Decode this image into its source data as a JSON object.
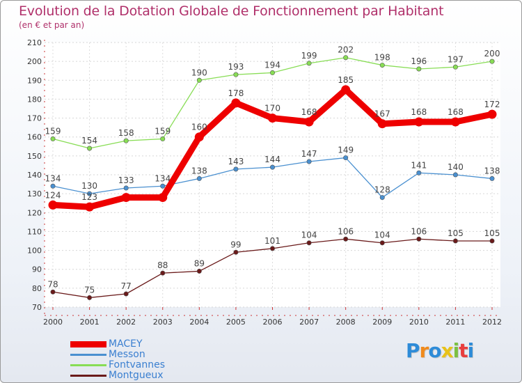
{
  "title": "Evolution de la Dotation Globale de Fonctionnement par Habitant",
  "subtitle": "(en € et par an)",
  "chart_data": {
    "type": "line",
    "title": "Evolution de la Dotation Globale de Fonctionnement par Habitant",
    "ylabel": "(en € et par an)",
    "xlabel": "",
    "x": [
      "2000",
      "2001",
      "2002",
      "2003",
      "2004",
      "2005",
      "2006",
      "2007",
      "2008",
      "2009",
      "2010",
      "2011",
      "2012"
    ],
    "ylim": [
      70,
      210
    ],
    "yticks": [
      70,
      80,
      90,
      100,
      110,
      120,
      130,
      140,
      150,
      160,
      170,
      180,
      190,
      200,
      210
    ],
    "grid": true,
    "legend_position": "bottom-left",
    "series": [
      {
        "name": "MACEY",
        "color": "#ee0000",
        "values": [
          124,
          123,
          128,
          128,
          160,
          178,
          170,
          168,
          185,
          167,
          168,
          168,
          172
        ],
        "labels": [
          "124",
          "123",
          "",
          "",
          "160",
          "178",
          "170",
          "168",
          "185",
          "167",
          "168",
          "168",
          "172"
        ]
      },
      {
        "name": "Messon",
        "color": "#4a90d0",
        "values": [
          134,
          130,
          133,
          134,
          138,
          143,
          144,
          147,
          149,
          128,
          141,
          140,
          138
        ],
        "labels": [
          "134",
          "130",
          "133",
          "134",
          "138",
          "143",
          "144",
          "147",
          "149",
          "128",
          "141",
          "140",
          "138"
        ]
      },
      {
        "name": "Fontvannes",
        "color": "#88dd55",
        "values": [
          159,
          154,
          158,
          159,
          190,
          193,
          194,
          199,
          202,
          198,
          196,
          197,
          200
        ],
        "labels": [
          "159",
          "154",
          "158",
          "159",
          "190",
          "193",
          "194",
          "199",
          "202",
          "198",
          "196",
          "197",
          "200"
        ]
      },
      {
        "name": "Montgueux",
        "color": "#6a1a1a",
        "values": [
          78,
          75,
          77,
          88,
          89,
          99,
          101,
          104,
          106,
          104,
          106,
          105,
          105
        ],
        "labels": [
          "78",
          "75",
          "77",
          "88",
          "89",
          "99",
          "101",
          "104",
          "106",
          "104",
          "106",
          "105",
          "105"
        ]
      }
    ]
  },
  "logo": {
    "letters": [
      "P",
      "r",
      "o",
      "x",
      "i",
      "t",
      "i"
    ],
    "colors": [
      "#2d8bd8",
      "#f08a1c",
      "#2d8bd8",
      "#e8c21a",
      "#7bc043",
      "#e83e3e",
      "#2d8bd8"
    ]
  }
}
